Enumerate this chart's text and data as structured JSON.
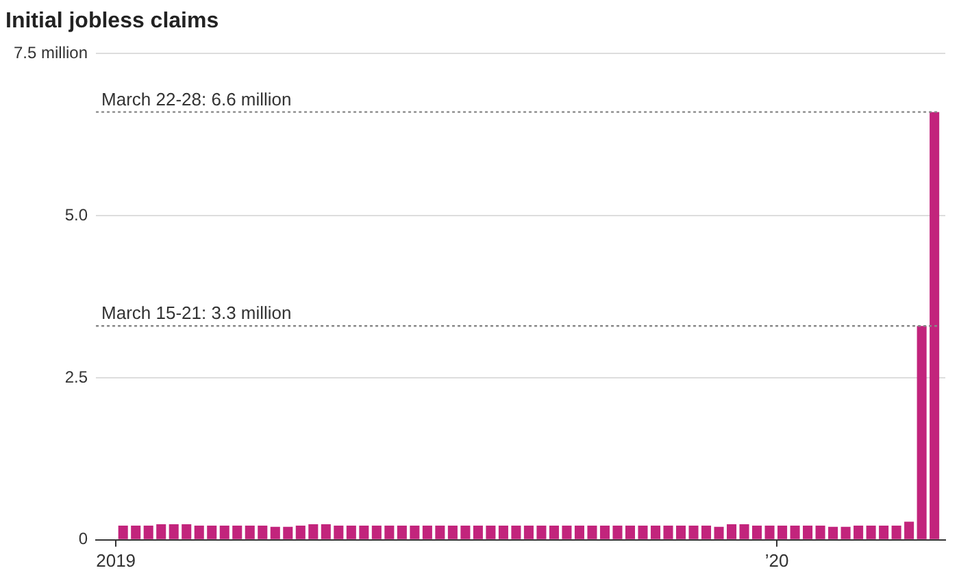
{
  "chart_data": {
    "type": "bar",
    "title": "Initial jobless claims",
    "x": [
      "2019-01-05",
      "2019-01-12",
      "2019-01-19",
      "2019-01-26",
      "2019-02-02",
      "2019-02-09",
      "2019-02-16",
      "2019-02-23",
      "2019-03-02",
      "2019-03-09",
      "2019-03-16",
      "2019-03-23",
      "2019-03-30",
      "2019-04-06",
      "2019-04-13",
      "2019-04-20",
      "2019-04-27",
      "2019-05-04",
      "2019-05-11",
      "2019-05-18",
      "2019-05-25",
      "2019-06-01",
      "2019-06-08",
      "2019-06-15",
      "2019-06-22",
      "2019-06-29",
      "2019-07-06",
      "2019-07-13",
      "2019-07-20",
      "2019-07-27",
      "2019-08-03",
      "2019-08-10",
      "2019-08-17",
      "2019-08-24",
      "2019-08-31",
      "2019-09-07",
      "2019-09-14",
      "2019-09-21",
      "2019-09-28",
      "2019-10-05",
      "2019-10-12",
      "2019-10-19",
      "2019-10-26",
      "2019-11-02",
      "2019-11-09",
      "2019-11-16",
      "2019-11-23",
      "2019-11-30",
      "2019-12-07",
      "2019-12-14",
      "2019-12-21",
      "2019-12-28",
      "2020-01-04",
      "2020-01-11",
      "2020-01-18",
      "2020-01-25",
      "2020-02-01",
      "2020-02-08",
      "2020-02-15",
      "2020-02-22",
      "2020-02-29",
      "2020-03-07",
      "2020-03-14",
      "2020-03-21",
      "2020-03-28"
    ],
    "values": [
      0.22,
      0.22,
      0.22,
      0.24,
      0.24,
      0.24,
      0.22,
      0.22,
      0.22,
      0.22,
      0.22,
      0.22,
      0.2,
      0.2,
      0.22,
      0.24,
      0.24,
      0.22,
      0.22,
      0.22,
      0.22,
      0.22,
      0.22,
      0.22,
      0.22,
      0.22,
      0.22,
      0.22,
      0.22,
      0.22,
      0.22,
      0.22,
      0.22,
      0.22,
      0.22,
      0.22,
      0.22,
      0.22,
      0.22,
      0.22,
      0.22,
      0.22,
      0.22,
      0.22,
      0.22,
      0.22,
      0.22,
      0.2,
      0.24,
      0.24,
      0.22,
      0.22,
      0.22,
      0.22,
      0.22,
      0.22,
      0.2,
      0.2,
      0.22,
      0.22,
      0.22,
      0.22,
      0.28,
      3.3,
      6.6
    ],
    "color": "#c2247c",
    "xlim": [
      "2018-12-21",
      "2020-04-03"
    ],
    "xticks": [
      {
        "value": "2019-01-01",
        "label": "2019"
      },
      {
        "value": "2020-01-01",
        "label": "’20"
      }
    ],
    "ylim": [
      0,
      7.5
    ],
    "yticks": [
      0,
      2.5,
      {
        "value": 5,
        "label": "5.0"
      },
      {
        "value": 7.5,
        "label": "7.5 million"
      }
    ],
    "grid": "y",
    "ref_lines": [
      {
        "axis": "y",
        "value": 6.6,
        "label": "March 22-28: 6.6 million",
        "line_style": "dotted",
        "color": "#888888"
      },
      {
        "axis": "y",
        "value": 3.3,
        "label": "March 15-21: 3.3 million",
        "line_style": "dotted",
        "color": "#888888"
      }
    ]
  }
}
